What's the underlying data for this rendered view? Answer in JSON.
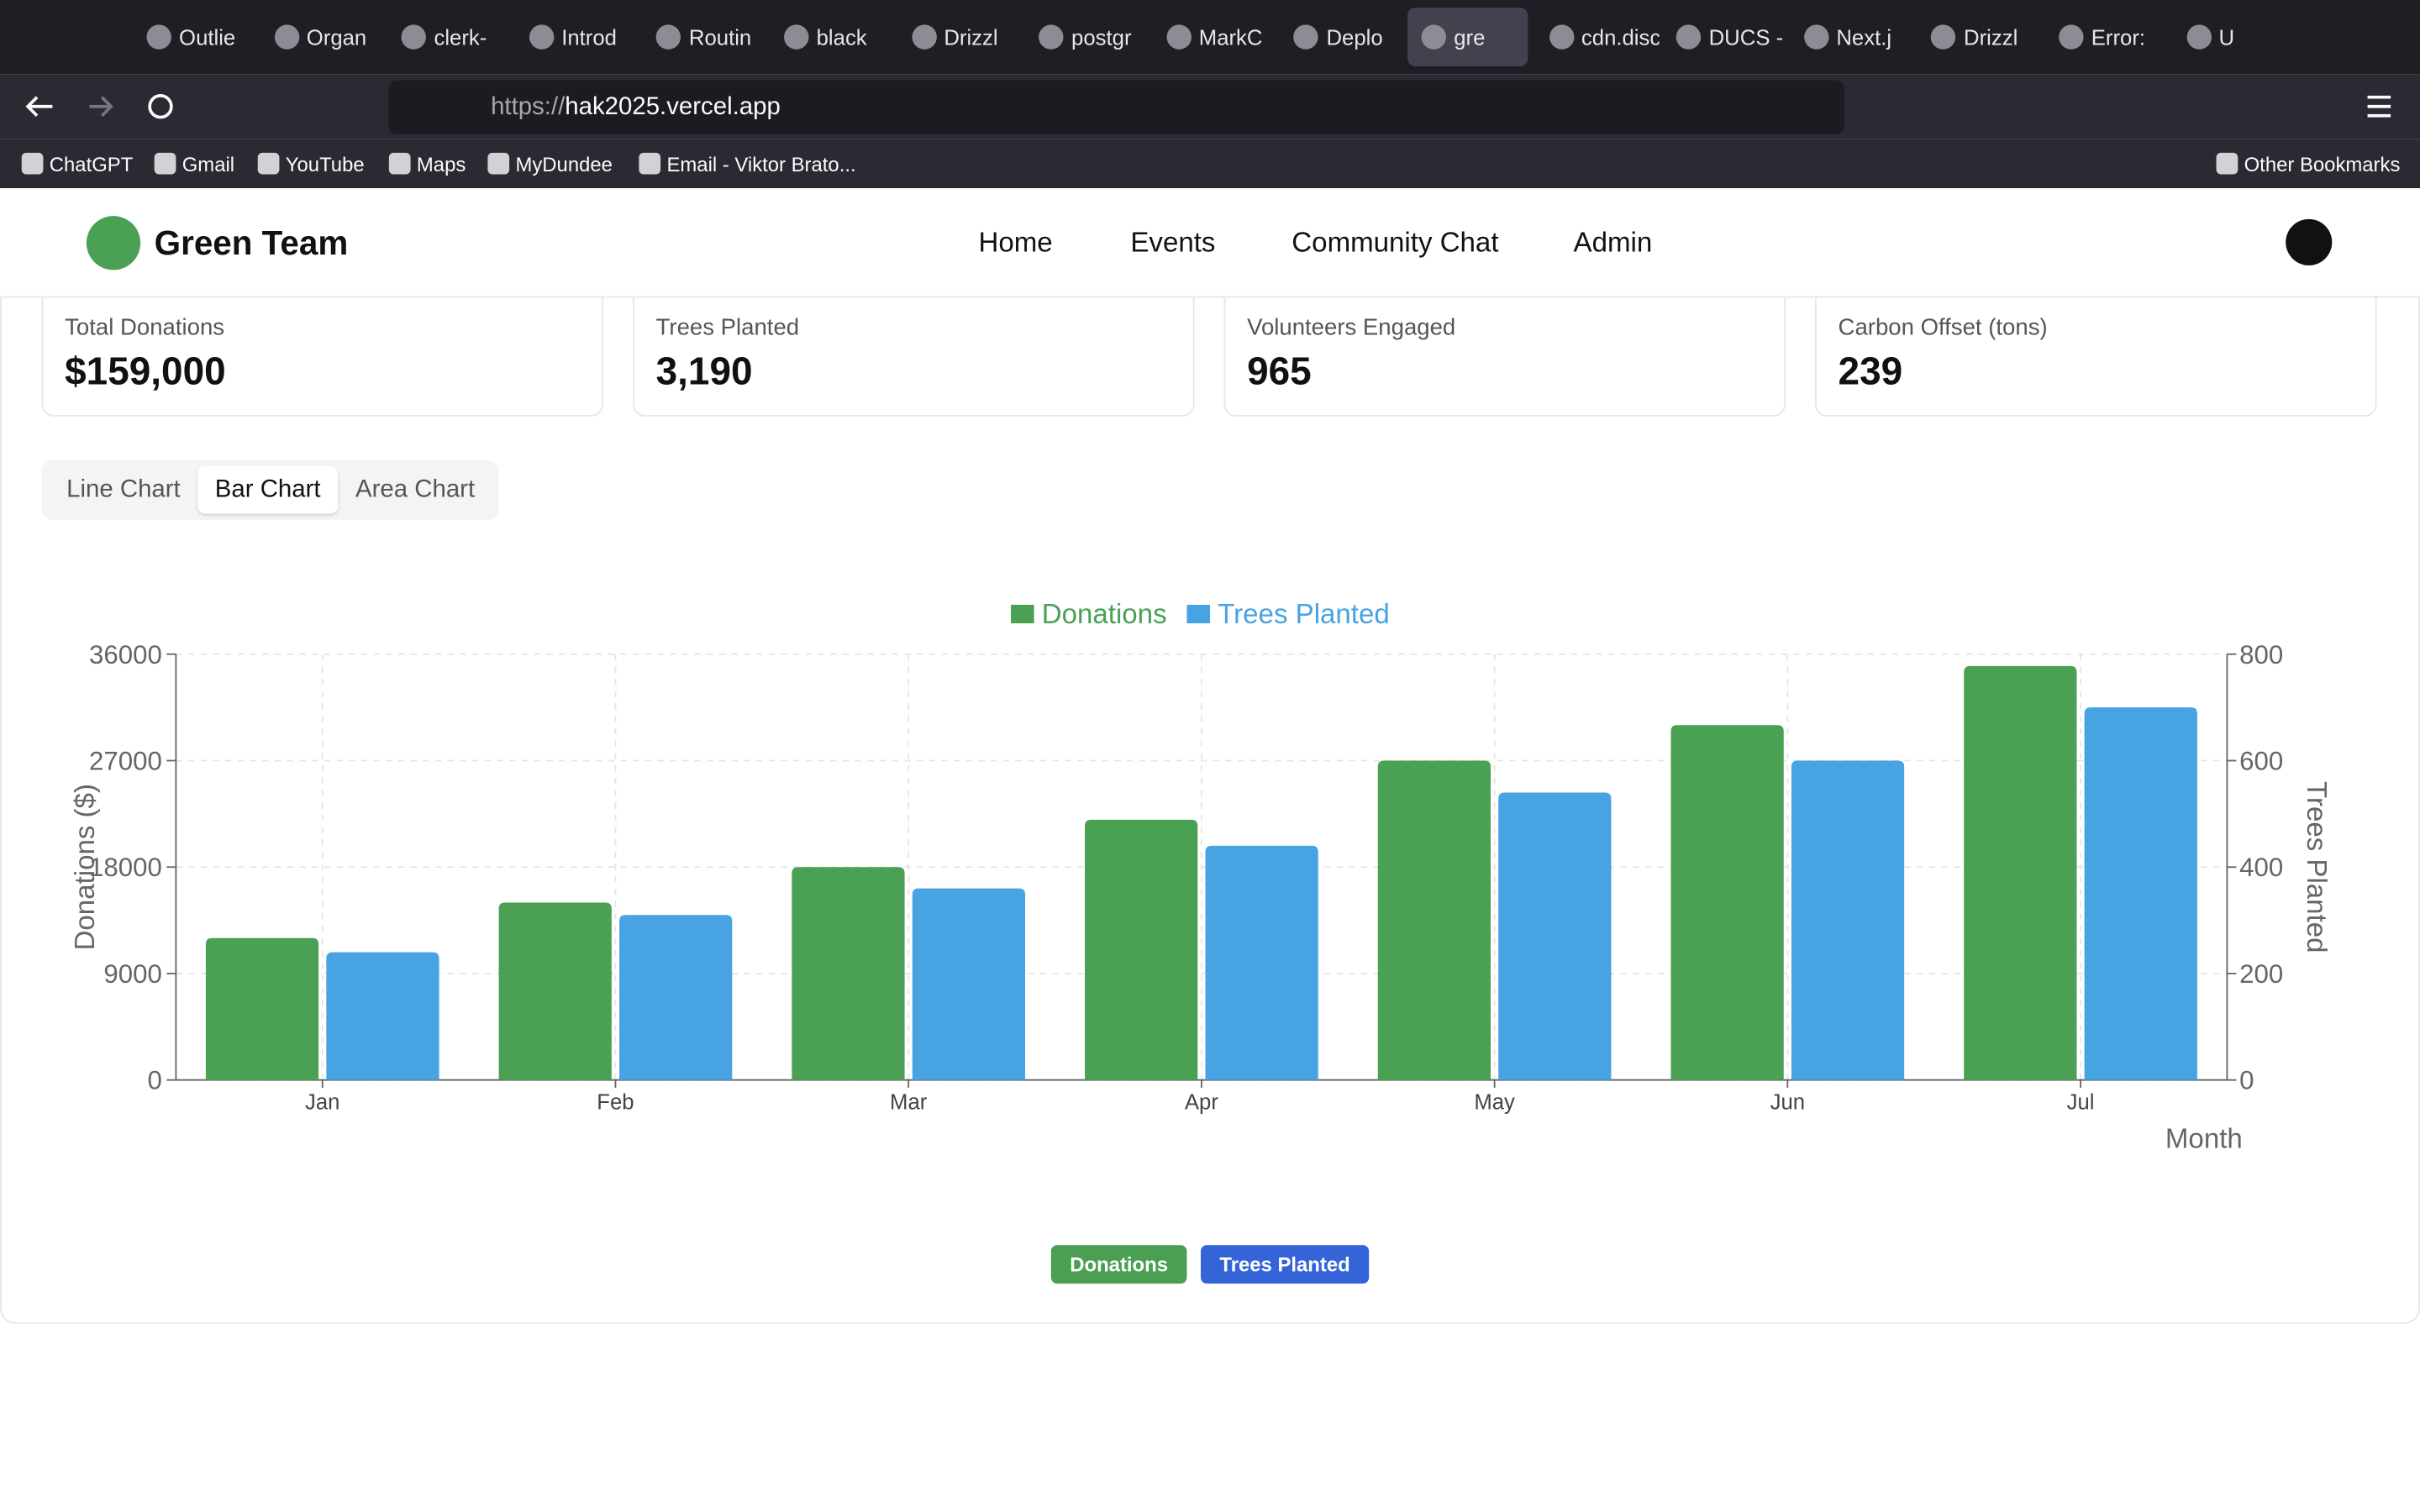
{
  "browser": {
    "tabs": [
      "Outlie",
      "Organ",
      "clerk-",
      "Introd",
      "Routin",
      "black",
      "Drizzl",
      "postgr",
      "MarkC",
      "Deplo",
      "gre",
      "cdn.discor",
      "DUCS - W",
      "Next.j",
      "Drizzl",
      "Error:",
      "U"
    ],
    "url": {
      "scheme": "https://",
      "host": "hak2025.vercel.app"
    },
    "bookmarks": [
      "ChatGPT",
      "Gmail",
      "YouTube",
      "Maps",
      "MyDundee",
      "Email - Viktor Brato..."
    ],
    "other_bookmarks": "Other Bookmarks"
  },
  "header": {
    "title": "Green Team",
    "nav": [
      "Home",
      "Events",
      "Community Chat",
      "Admin"
    ]
  },
  "stats": [
    {
      "label": "Total Donations",
      "value": "$159,000"
    },
    {
      "label": "Trees Planted",
      "value": "3,190"
    },
    {
      "label": "Volunteers Engaged",
      "value": "965"
    },
    {
      "label": "Carbon Offset (tons)",
      "value": "239"
    }
  ],
  "chart_tabs": {
    "items": [
      "Line Chart",
      "Bar Chart",
      "Area Chart"
    ],
    "active": 1
  },
  "chart_data": {
    "type": "bar",
    "categories": [
      "Jan",
      "Feb",
      "Mar",
      "Apr",
      "May",
      "Jun",
      "Jul"
    ],
    "series": [
      {
        "name": "Donations",
        "color": "#4aa154",
        "values": [
          12000,
          15000,
          18000,
          22000,
          27000,
          30000,
          35000
        ]
      },
      {
        "name": "Trees Planted",
        "color": "#47a3e2",
        "axis": "y2",
        "values": [
          240,
          310,
          360,
          440,
          540,
          600,
          700
        ]
      }
    ],
    "ylabel": "Donations ($)",
    "y2label": "Trees Planted",
    "xlabel": "Month",
    "ylim": [
      0,
      36000
    ],
    "yticks": [
      0,
      9000,
      18000,
      27000,
      36000
    ],
    "y2lim": [
      0,
      800
    ],
    "y2ticks": [
      0,
      200,
      400,
      600,
      800
    ],
    "grid": true,
    "legend": "top"
  }
}
